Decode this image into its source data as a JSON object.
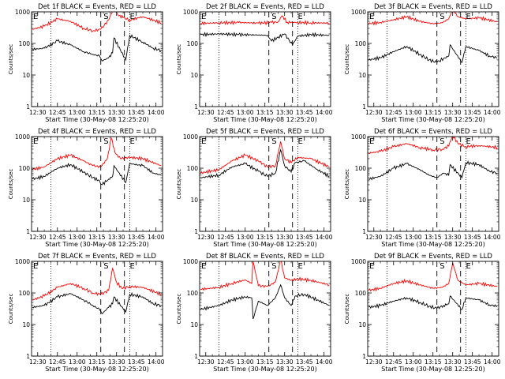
{
  "figure": {
    "ylabel": "Counts/sec",
    "ytick_labels": [
      "1",
      "10",
      "100",
      "1000"
    ],
    "xtick_labels": [
      "12:30",
      "12:45",
      "13:00",
      "13:15",
      "13:30",
      "13:45",
      "14:00"
    ],
    "event_marks": [
      "S",
      "E"
    ],
    "edge_marks": [
      "E"
    ],
    "colors": {
      "events": "#000000",
      "lld": "#ff0000",
      "axes": "#000000",
      "background": "#ffffff"
    }
  },
  "chart_data": [
    {
      "type": "line",
      "title": "Det 1f BLACK = Events, RED = LLD",
      "xlabel": "Start Time (30-May-08 12:25:20)",
      "ylabel": "Counts/sec",
      "yscale": "log",
      "ylim": [
        1,
        1000
      ],
      "xlim": [
        "12:25:20",
        "14:05"
      ],
      "grid": false,
      "legend": "in title",
      "dotted_lines_x": [
        "12:40",
        "13:40"
      ],
      "dashed_lines_x": [
        "13:18",
        "13:36"
      ],
      "S_x": "13:22",
      "E_x": "13:42",
      "series": [
        {
          "name": "Events",
          "color": "#000000",
          "x": [
            "12:26",
            "12:35",
            "12:45",
            "12:55",
            "13:05",
            "13:12",
            "13:17",
            "13:19",
            "13:24",
            "13:27",
            "13:28",
            "13:37",
            "13:40",
            "13:50",
            "13:58",
            "14:04"
          ],
          "y": [
            65,
            70,
            120,
            90,
            55,
            45,
            40,
            28,
            35,
            50,
            150,
            30,
            180,
            110,
            70,
            60
          ]
        },
        {
          "name": "LLD",
          "color": "#ff0000",
          "x": [
            "12:26",
            "12:35",
            "12:45",
            "12:55",
            "13:05",
            "13:12",
            "13:18",
            "13:24",
            "13:28",
            "13:31",
            "13:35",
            "13:40",
            "13:50",
            "14:04"
          ],
          "y": [
            280,
            350,
            600,
            500,
            300,
            250,
            280,
            550,
            1400,
            800,
            650,
            550,
            700,
            450
          ]
        }
      ]
    },
    {
      "type": "line",
      "title": "Det 2f BLACK = Events, RED = LLD",
      "xlabel": "Start Time (30-May-08 12:25:20)",
      "ylabel": "Counts/sec",
      "yscale": "log",
      "ylim": [
        1,
        1000
      ],
      "xlim": [
        "12:25:20",
        "14:05"
      ],
      "grid": false,
      "legend": "in title",
      "dotted_lines_x": [
        "12:40",
        "13:40"
      ],
      "dashed_lines_x": [
        "13:18",
        "13:36"
      ],
      "S_x": "13:22",
      "E_x": "13:42",
      "series": [
        {
          "name": "Events",
          "color": "#000000",
          "x": [
            "12:26",
            "12:40",
            "12:55",
            "13:10",
            "13:17",
            "13:20",
            "13:30",
            "13:36",
            "13:40",
            "13:50",
            "14:04"
          ],
          "y": [
            190,
            200,
            190,
            185,
            180,
            120,
            200,
            90,
            170,
            190,
            180
          ]
        },
        {
          "name": "LLD",
          "color": "#ff0000",
          "x": [
            "12:26",
            "12:40",
            "12:55",
            "13:10",
            "13:20",
            "13:25",
            "13:28",
            "13:32",
            "13:40",
            "13:50",
            "14:04"
          ],
          "y": [
            430,
            450,
            460,
            440,
            460,
            480,
            750,
            470,
            460,
            450,
            440
          ]
        }
      ]
    },
    {
      "type": "line",
      "title": "Det 3f BLACK = Events, RED = LLD",
      "xlabel": "Start Time (30-May-08 12:25:20)",
      "ylabel": "Counts/sec",
      "yscale": "log",
      "ylim": [
        1,
        1000
      ],
      "xlim": [
        "12:25:20",
        "14:05"
      ],
      "grid": false,
      "legend": "in title",
      "dotted_lines_x": [
        "12:40",
        "13:40"
      ],
      "dashed_lines_x": [
        "13:18",
        "13:36"
      ],
      "S_x": "13:22",
      "E_x": "13:42",
      "series": [
        {
          "name": "Events",
          "color": "#000000",
          "x": [
            "12:26",
            "12:35",
            "12:45",
            "12:55",
            "13:05",
            "13:12",
            "13:18",
            "13:24",
            "13:27",
            "13:28",
            "13:37",
            "13:40",
            "13:50",
            "13:58",
            "14:04"
          ],
          "y": [
            30,
            35,
            55,
            80,
            45,
            30,
            25,
            35,
            40,
            90,
            25,
            80,
            60,
            40,
            35
          ]
        },
        {
          "name": "LLD",
          "color": "#ff0000",
          "x": [
            "12:26",
            "12:35",
            "12:45",
            "12:55",
            "13:05",
            "13:15",
            "13:22",
            "13:27",
            "13:30",
            "13:34",
            "13:40",
            "13:50",
            "14:04"
          ],
          "y": [
            420,
            460,
            560,
            700,
            500,
            420,
            450,
            600,
            1200,
            700,
            600,
            650,
            480
          ]
        }
      ]
    },
    {
      "type": "line",
      "title": "Det 4f BLACK = Events, RED = LLD",
      "xlabel": "Start Time (30-May-08 12:25:20)",
      "ylabel": "Counts/sec",
      "yscale": "log",
      "ylim": [
        1,
        1000
      ],
      "xlim": [
        "12:25:20",
        "14:05"
      ],
      "grid": false,
      "legend": "in title",
      "dotted_lines_x": [
        "12:40",
        "13:40"
      ],
      "dashed_lines_x": [
        "13:18",
        "13:36"
      ],
      "S_x": "13:22",
      "E_x": "13:42",
      "series": [
        {
          "name": "Events",
          "color": "#000000",
          "x": [
            "12:26",
            "12:35",
            "12:45",
            "12:55",
            "13:05",
            "13:12",
            "13:17",
            "13:19",
            "13:24",
            "13:27",
            "13:28",
            "13:37",
            "13:40",
            "13:50",
            "13:58",
            "14:04"
          ],
          "y": [
            45,
            55,
            100,
            130,
            75,
            50,
            40,
            30,
            45,
            55,
            120,
            35,
            140,
            120,
            70,
            60
          ]
        },
        {
          "name": "LLD",
          "color": "#ff0000",
          "x": [
            "12:26",
            "12:35",
            "12:45",
            "12:55",
            "13:05",
            "13:12",
            "13:18",
            "13:23",
            "13:26",
            "13:29",
            "13:33",
            "13:40",
            "13:50",
            "14:04"
          ],
          "y": [
            90,
            110,
            200,
            260,
            170,
            120,
            110,
            200,
            900,
            300,
            200,
            220,
            200,
            120
          ]
        }
      ]
    },
    {
      "type": "line",
      "title": "Det 5f BLACK = Events, RED = LLD",
      "xlabel": "Start Time (30-May-08 12:25:20)",
      "ylabel": "Counts/sec",
      "yscale": "log",
      "ylim": [
        1,
        1000
      ],
      "xlim": [
        "12:25:20",
        "14:05"
      ],
      "grid": false,
      "legend": "in title",
      "dotted_lines_x": [
        "12:40",
        "13:40"
      ],
      "dashed_lines_x": [
        "13:18",
        "13:36"
      ],
      "S_x": "13:22",
      "E_x": "13:42",
      "series": [
        {
          "name": "Events",
          "color": "#000000",
          "x": [
            "12:26",
            "12:40",
            "12:50",
            "13:00",
            "13:10",
            "13:17",
            "13:23",
            "13:27",
            "13:30",
            "13:35",
            "13:38",
            "13:45",
            "13:55",
            "14:04"
          ],
          "y": [
            50,
            60,
            110,
            140,
            80,
            55,
            70,
            380,
            120,
            75,
            150,
            170,
            90,
            55
          ]
        },
        {
          "name": "LLD",
          "color": "#ff0000",
          "x": [
            "12:26",
            "12:40",
            "12:50",
            "13:00",
            "13:10",
            "13:17",
            "13:23",
            "13:27",
            "13:30",
            "13:35",
            "13:40",
            "13:50",
            "14:04"
          ],
          "y": [
            70,
            90,
            170,
            260,
            170,
            110,
            120,
            700,
            200,
            150,
            220,
            200,
            110
          ]
        }
      ]
    },
    {
      "type": "line",
      "title": "Det 6f BLACK = Events, RED = LLD",
      "xlabel": "Start Time (30-May-08 12:25:20)",
      "ylabel": "Counts/sec",
      "yscale": "log",
      "ylim": [
        1,
        1000
      ],
      "xlim": [
        "12:25:20",
        "14:05"
      ],
      "grid": false,
      "legend": "in title",
      "dotted_lines_x": [
        "12:40",
        "13:40"
      ],
      "dashed_lines_x": [
        "13:18",
        "13:36"
      ],
      "S_x": "13:22",
      "E_x": "13:42",
      "series": [
        {
          "name": "Events",
          "color": "#000000",
          "x": [
            "12:26",
            "12:35",
            "12:45",
            "12:55",
            "13:05",
            "13:12",
            "13:18",
            "13:23",
            "13:27",
            "13:28",
            "13:37",
            "13:40",
            "13:50",
            "13:58",
            "14:04"
          ],
          "y": [
            45,
            55,
            100,
            140,
            90,
            60,
            50,
            70,
            60,
            130,
            50,
            150,
            130,
            80,
            70
          ]
        },
        {
          "name": "LLD",
          "color": "#ff0000",
          "x": [
            "12:26",
            "12:35",
            "12:45",
            "12:55",
            "13:05",
            "13:15",
            "13:22",
            "13:27",
            "13:30",
            "13:34",
            "13:40",
            "13:50",
            "14:04"
          ],
          "y": [
            300,
            340,
            480,
            600,
            450,
            380,
            400,
            500,
            1100,
            600,
            480,
            520,
            450
          ]
        }
      ]
    },
    {
      "type": "line",
      "title": "Det 7f BLACK = Events, RED = LLD",
      "xlabel": "Start Time (30-May-08 12:25:20)",
      "ylabel": "Counts/sec",
      "yscale": "log",
      "ylim": [
        1,
        1000
      ],
      "xlim": [
        "12:25:20",
        "14:05"
      ],
      "grid": false,
      "legend": "in title",
      "dotted_lines_x": [
        "12:40",
        "13:40"
      ],
      "dashed_lines_x": [
        "13:18",
        "13:36"
      ],
      "S_x": "13:22",
      "E_x": "13:42",
      "series": [
        {
          "name": "Events",
          "color": "#000000",
          "x": [
            "12:26",
            "12:35",
            "12:45",
            "12:55",
            "13:05",
            "13:12",
            "13:17",
            "13:19",
            "13:24",
            "13:27",
            "13:28",
            "13:37",
            "13:40",
            "13:50",
            "13:58",
            "14:04"
          ],
          "y": [
            35,
            40,
            75,
            95,
            60,
            40,
            30,
            22,
            35,
            45,
            75,
            25,
            90,
            75,
            45,
            40
          ]
        },
        {
          "name": "LLD",
          "color": "#ff0000",
          "x": [
            "12:26",
            "12:35",
            "12:45",
            "12:55",
            "13:05",
            "13:12",
            "13:18",
            "13:24",
            "13:27",
            "13:30",
            "13:34",
            "13:40",
            "13:50",
            "14:04"
          ],
          "y": [
            60,
            80,
            150,
            200,
            140,
            100,
            90,
            120,
            600,
            220,
            140,
            160,
            150,
            90
          ]
        }
      ]
    },
    {
      "type": "line",
      "title": "Det 8f BLACK = Events, RED = LLD",
      "xlabel": "Start Time (30-May-08 12:25:20)",
      "ylabel": "Counts/sec",
      "yscale": "log",
      "ylim": [
        1,
        1000
      ],
      "xlim": [
        "12:25:20",
        "14:05"
      ],
      "grid": false,
      "legend": "in title",
      "dotted_lines_x": [
        "12:40",
        "13:40"
      ],
      "dashed_lines_x": [
        "13:18",
        "13:36"
      ],
      "S_x": "13:22",
      "E_x": "13:42",
      "series": [
        {
          "name": "Events",
          "color": "#000000",
          "x": [
            "12:26",
            "12:40",
            "12:50",
            "13:00",
            "13:05",
            "13:06",
            "13:10",
            "13:17",
            "13:23",
            "13:27",
            "13:30",
            "13:35",
            "13:38",
            "13:45",
            "13:55",
            "14:04"
          ],
          "y": [
            30,
            40,
            60,
            75,
            70,
            15,
            55,
            40,
            70,
            180,
            70,
            40,
            80,
            90,
            60,
            40
          ]
        },
        {
          "name": "LLD",
          "color": "#ff0000",
          "x": [
            "12:26",
            "12:40",
            "12:50",
            "13:00",
            "13:05",
            "13:06",
            "13:10",
            "13:17",
            "13:23",
            "13:27",
            "13:30",
            "13:35",
            "13:40",
            "13:50",
            "14:04"
          ],
          "y": [
            130,
            150,
            200,
            260,
            200,
            1000,
            170,
            160,
            220,
            1100,
            300,
            250,
            280,
            250,
            180
          ]
        }
      ]
    },
    {
      "type": "line",
      "title": "Det 9f BLACK = Events, RED = LLD",
      "xlabel": "Start Time (30-May-08 12:25:20)",
      "ylabel": "Counts/sec",
      "yscale": "log",
      "ylim": [
        1,
        1000
      ],
      "xlim": [
        "12:25:20",
        "14:05"
      ],
      "grid": false,
      "legend": "in title",
      "dotted_lines_x": [
        "12:40",
        "13:40"
      ],
      "dashed_lines_x": [
        "13:18",
        "13:36"
      ],
      "S_x": "13:22",
      "E_x": "13:42",
      "series": [
        {
          "name": "Events",
          "color": "#000000",
          "x": [
            "12:26",
            "12:35",
            "12:45",
            "12:55",
            "13:05",
            "13:12",
            "13:18",
            "13:23",
            "13:27",
            "13:28",
            "13:37",
            "13:40",
            "13:50",
            "13:58",
            "14:04"
          ],
          "y": [
            35,
            40,
            55,
            70,
            50,
            38,
            32,
            40,
            45,
            80,
            30,
            70,
            60,
            42,
            38
          ]
        },
        {
          "name": "LLD",
          "color": "#ff0000",
          "x": [
            "12:26",
            "12:35",
            "12:45",
            "12:55",
            "13:05",
            "13:15",
            "13:22",
            "13:27",
            "13:30",
            "13:34",
            "13:40",
            "13:50",
            "14:04"
          ],
          "y": [
            120,
            140,
            200,
            240,
            180,
            140,
            150,
            200,
            900,
            250,
            180,
            200,
            160
          ]
        }
      ]
    }
  ]
}
